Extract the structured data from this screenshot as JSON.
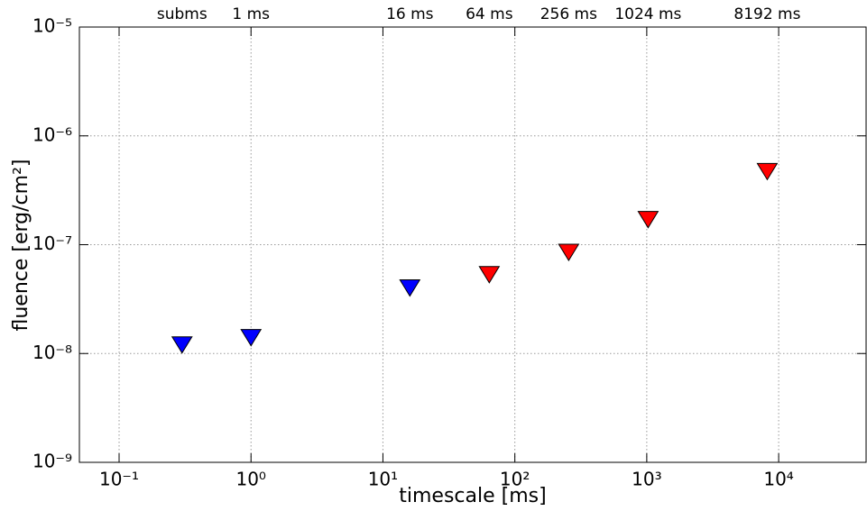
{
  "chart_data": {
    "type": "scatter",
    "xlabel": "timescale [ms]",
    "ylabel": "fluence [erg/cm²]",
    "xscale": "log",
    "yscale": "log",
    "grid": true,
    "marker": "triangle-down",
    "xlim": [
      0.05,
      46000
    ],
    "ylim": [
      1e-09,
      1e-05
    ],
    "xticks": [
      {
        "value": 0.1,
        "label": "10⁻¹"
      },
      {
        "value": 1,
        "label": "10⁰"
      },
      {
        "value": 10,
        "label": "10¹"
      },
      {
        "value": 100,
        "label": "10²"
      },
      {
        "value": 1000,
        "label": "10³"
      },
      {
        "value": 10000,
        "label": "10⁴"
      }
    ],
    "yticks": [
      {
        "value": 1e-09,
        "label": "10⁻⁹"
      },
      {
        "value": 1e-08,
        "label": "10⁻⁸"
      },
      {
        "value": 1e-07,
        "label": "10⁻⁷"
      },
      {
        "value": 1e-06,
        "label": "10⁻⁶"
      },
      {
        "value": 1e-05,
        "label": "10⁻⁵"
      }
    ],
    "series": [
      {
        "color": "#0000ff",
        "x": [
          0.3,
          1,
          16
        ],
        "values": [
          1.2e-08,
          1.4e-08,
          4e-08
        ]
      },
      {
        "color": "#ff0000",
        "x": [
          64,
          256,
          1024,
          8192
        ],
        "values": [
          5.3e-08,
          8.5e-08,
          1.7e-07,
          4.7e-07
        ]
      }
    ],
    "annotations": [
      {
        "text": "subms",
        "x": 0.3
      },
      {
        "text": "1 ms",
        "x": 1
      },
      {
        "text": "16 ms",
        "x": 16
      },
      {
        "text": "64 ms",
        "x": 64
      },
      {
        "text": "256 ms",
        "x": 256
      },
      {
        "text": "1024 ms",
        "x": 1024
      },
      {
        "text": "8192 ms",
        "x": 8192
      }
    ]
  }
}
